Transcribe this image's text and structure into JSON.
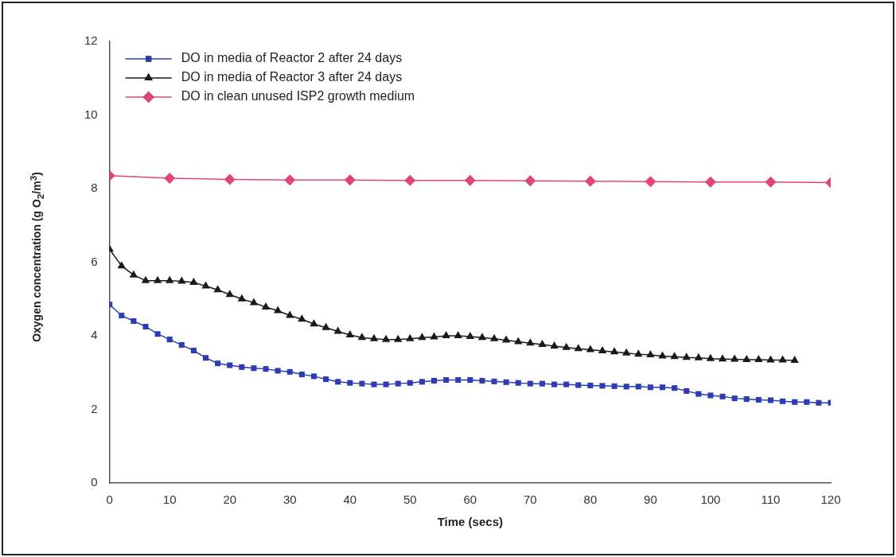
{
  "chart_data": {
    "type": "line",
    "xlabel": "Time (secs)",
    "ylabel": "Oxygen concentration (g O$_{2}$/m$^{3}$)",
    "xlim": [
      0,
      120
    ],
    "xticks": [
      0,
      10,
      20,
      30,
      40,
      50,
      60,
      70,
      80,
      90,
      100,
      110,
      120
    ],
    "ylim": [
      0,
      12
    ],
    "yticks": [
      0,
      2,
      4,
      6,
      8,
      10,
      12
    ],
    "grid": false,
    "legend": "top left",
    "series": [
      {
        "name": "DO in media of Reactor 2 after 24 days",
        "color": "#2e3cb4",
        "marker": "square",
        "x": [
          0,
          2,
          4,
          6,
          8,
          10,
          12,
          14,
          16,
          18,
          20,
          22,
          24,
          26,
          28,
          30,
          32,
          34,
          36,
          38,
          40,
          42,
          44,
          46,
          48,
          50,
          52,
          54,
          56,
          58,
          60,
          62,
          64,
          66,
          68,
          70,
          72,
          74,
          76,
          78,
          80,
          82,
          84,
          86,
          88,
          90,
          92,
          94,
          96,
          98,
          100,
          102,
          104,
          106,
          108,
          110,
          112,
          114,
          116,
          118,
          120
        ],
        "values": [
          4.85,
          4.55,
          4.4,
          4.25,
          4.05,
          3.9,
          3.75,
          3.6,
          3.4,
          3.25,
          3.2,
          3.15,
          3.12,
          3.1,
          3.05,
          3.02,
          2.95,
          2.9,
          2.82,
          2.75,
          2.72,
          2.7,
          2.68,
          2.68,
          2.7,
          2.72,
          2.75,
          2.78,
          2.8,
          2.8,
          2.8,
          2.78,
          2.76,
          2.74,
          2.72,
          2.7,
          2.7,
          2.68,
          2.68,
          2.66,
          2.65,
          2.64,
          2.63,
          2.62,
          2.62,
          2.6,
          2.6,
          2.58,
          2.5,
          2.42,
          2.38,
          2.35,
          2.3,
          2.28,
          2.26,
          2.25,
          2.22,
          2.2,
          2.2,
          2.18,
          2.18
        ]
      },
      {
        "name": "DO in media of Reactor 3 after 24 days",
        "color": "#1a1a1a",
        "marker": "triangle",
        "x": [
          0,
          2,
          4,
          6,
          8,
          10,
          12,
          14,
          16,
          18,
          20,
          22,
          24,
          26,
          28,
          30,
          32,
          34,
          36,
          38,
          40,
          42,
          44,
          46,
          48,
          50,
          52,
          54,
          56,
          58,
          60,
          62,
          64,
          66,
          68,
          70,
          72,
          74,
          76,
          78,
          80,
          82,
          84,
          86,
          88,
          90,
          92,
          94,
          96,
          98,
          100,
          102,
          104,
          106,
          108,
          110,
          112,
          114
        ],
        "values": [
          6.35,
          5.9,
          5.65,
          5.5,
          5.5,
          5.5,
          5.48,
          5.45,
          5.35,
          5.25,
          5.12,
          5.0,
          4.9,
          4.78,
          4.68,
          4.55,
          4.45,
          4.32,
          4.22,
          4.12,
          4.02,
          3.95,
          3.92,
          3.9,
          3.9,
          3.92,
          3.95,
          3.97,
          4.0,
          4.0,
          3.98,
          3.95,
          3.92,
          3.88,
          3.84,
          3.8,
          3.76,
          3.72,
          3.68,
          3.65,
          3.62,
          3.59,
          3.56,
          3.53,
          3.5,
          3.48,
          3.45,
          3.43,
          3.41,
          3.4,
          3.38,
          3.37,
          3.36,
          3.35,
          3.35,
          3.34,
          3.34,
          3.33
        ]
      },
      {
        "name": "DO in clean unused ISP2 growth medium",
        "color": "#e0457a",
        "marker": "diamond",
        "x": [
          0,
          10,
          20,
          30,
          40,
          50,
          60,
          70,
          80,
          90,
          100,
          110,
          120
        ],
        "values": [
          8.35,
          8.28,
          8.25,
          8.23,
          8.23,
          8.22,
          8.22,
          8.21,
          8.2,
          8.19,
          8.18,
          8.18,
          8.16
        ]
      }
    ]
  }
}
